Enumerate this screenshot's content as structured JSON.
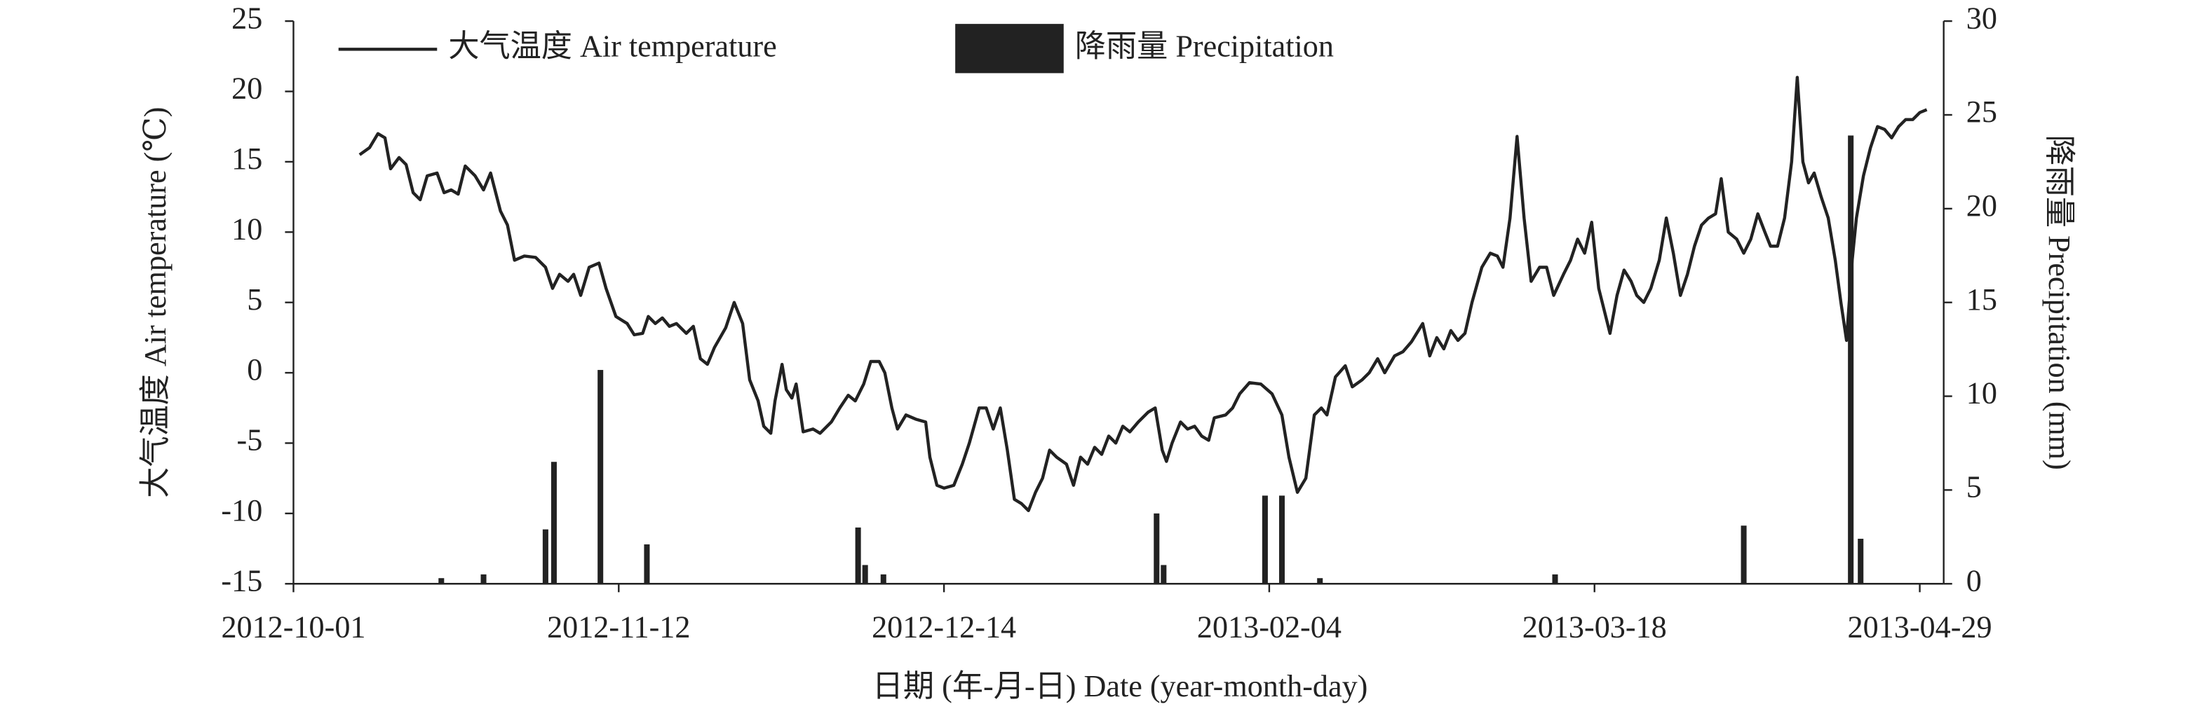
{
  "chart_data": {
    "type": "combo",
    "xlabel": "日期 (年-月-日) Date (year-month-day)",
    "ylabel": "大气温度 Air temperature (℃)",
    "y2label": "降雨量 Precipitation (mm)",
    "xlim": [
      0,
      1172
    ],
    "xticks": [
      {
        "value": 0,
        "label": "2012-10-01"
      },
      {
        "value": 231,
        "label": "2012-11-12"
      },
      {
        "value": 462,
        "label": "2012-12-14"
      },
      {
        "value": 693,
        "label": "2013-02-04"
      },
      {
        "value": 924,
        "label": "2013-03-18"
      },
      {
        "value": 1155,
        "label": "2013-04-29"
      }
    ],
    "ylim": [
      -15,
      25
    ],
    "yticks": [
      -15,
      -10,
      -5,
      0,
      5,
      10,
      15,
      20,
      25
    ],
    "y2lim": [
      0,
      30
    ],
    "y2ticks": [
      0,
      5,
      10,
      15,
      20,
      25,
      30
    ],
    "legend": "top",
    "series": [
      {
        "name": "大气温度 Air temperature",
        "type": "line",
        "color": "#222222",
        "x": [
          47,
          54,
          60,
          65,
          69,
          75,
          80,
          85,
          90,
          95,
          102,
          107,
          112,
          117,
          122,
          129,
          135,
          140,
          147,
          152,
          157,
          164,
          172,
          179,
          184,
          189,
          195,
          199,
          204,
          210,
          217,
          222,
          229,
          237,
          242,
          248,
          252,
          257,
          262,
          267,
          272,
          279,
          284,
          289,
          294,
          299,
          307,
          313,
          319,
          324,
          330,
          334,
          339,
          342,
          347,
          350,
          354,
          357,
          362,
          369,
          374,
          382,
          388,
          394,
          399,
          405,
          410,
          416,
          420,
          425,
          429,
          435,
          442,
          449,
          452,
          457,
          462,
          469,
          475,
          480,
          487,
          492,
          497,
          502,
          507,
          512,
          517,
          522,
          527,
          532,
          537,
          542,
          549,
          554,
          559,
          564,
          569,
          574,
          579,
          584,
          589,
          594,
          600,
          607,
          612,
          617,
          620,
          624,
          630,
          635,
          640,
          645,
          650,
          654,
          662,
          667,
          672,
          679,
          687,
          695,
          702,
          707,
          713,
          719,
          725,
          730,
          734,
          740,
          747,
          752,
          759,
          764,
          770,
          775,
          782,
          788,
          794,
          802,
          807,
          812,
          817,
          822,
          827,
          832,
          837,
          844,
          850,
          855,
          859,
          864,
          869,
          874,
          879,
          885,
          890,
          895,
          902,
          907,
          912,
          917,
          922,
          927,
          932,
          935,
          940,
          945,
          950,
          954,
          959,
          964,
          970,
          975,
          980,
          985,
          990,
          995,
          1000,
          1005,
          1010,
          1014,
          1019,
          1025,
          1030,
          1035,
          1040,
          1045,
          1049,
          1054,
          1059,
          1064,
          1068,
          1072,
          1076,
          1080,
          1085,
          1090,
          1095,
          1099,
          1103,
          1107,
          1110,
          1115,
          1120,
          1125,
          1130,
          1135,
          1140,
          1145,
          1150,
          1155,
          1160
        ],
        "values": [
          15.5,
          16,
          17,
          16.7,
          14.5,
          15.3,
          14.8,
          12.8,
          12.3,
          14,
          14.2,
          12.8,
          13,
          12.7,
          14.7,
          14,
          13,
          14.2,
          11.5,
          10.5,
          8,
          8.3,
          8.2,
          7.5,
          6,
          7,
          6.5,
          7,
          5.5,
          7.5,
          7.8,
          6,
          4,
          3.5,
          2.7,
          2.8,
          4,
          3.5,
          3.9,
          3.3,
          3.5,
          2.8,
          3.3,
          1,
          0.6,
          1.8,
          3.2,
          5,
          3.5,
          -0.5,
          -2,
          -3.8,
          -4.3,
          -2,
          0.6,
          -1.2,
          -1.8,
          -0.8,
          -4.2,
          -4,
          -4.3,
          -3.5,
          -2.5,
          -1.6,
          -2,
          -0.8,
          0.8,
          0.8,
          0,
          -2.5,
          -4,
          -3,
          -3.3,
          -3.5,
          -6,
          -8,
          -8.2,
          -8,
          -6.5,
          -5,
          -2.5,
          -2.5,
          -4,
          -2.5,
          -5.5,
          -9,
          -9.3,
          -9.8,
          -8.5,
          -7.5,
          -5.5,
          -6,
          -6.5,
          -8,
          -6,
          -6.5,
          -5.3,
          -5.8,
          -4.5,
          -5,
          -3.8,
          -4.2,
          -3.5,
          -2.8,
          -2.5,
          -5.5,
          -6.3,
          -5,
          -3.5,
          -4,
          -3.8,
          -4.5,
          -4.8,
          -3.2,
          -3,
          -2.5,
          -1.5,
          -0.7,
          -0.8,
          -1.5,
          -3,
          -6,
          -8.5,
          -7.5,
          -3,
          -2.5,
          -3,
          -0.3,
          0.5,
          -1,
          -0.5,
          0,
          1,
          0,
          1.2,
          1.5,
          2.2,
          3.5,
          1.2,
          2.5,
          1.7,
          3,
          2.3,
          2.8,
          5,
          7.5,
          8.5,
          8.3,
          7.5,
          11,
          16.8,
          11,
          6.5,
          7.5,
          7.5,
          5.5,
          7,
          8,
          9.5,
          8.5,
          10.7,
          6,
          4,
          2.8,
          5.5,
          7.3,
          6.5,
          5.5,
          5,
          6,
          8,
          11,
          8.5,
          5.5,
          7,
          9,
          10.5,
          11,
          11.3,
          13.8,
          10,
          9.5,
          8.5,
          9.5,
          11.3,
          10,
          9,
          9,
          11,
          15,
          21,
          15,
          13.5,
          14.2,
          12.5,
          11,
          8,
          5,
          2.3,
          8,
          11,
          14,
          16,
          17.5,
          17.3,
          16.7,
          17.5,
          18,
          18,
          18.5,
          18.7
        ]
      },
      {
        "name": "降雨量 Precipitation",
        "type": "bar",
        "axis": "y2",
        "color": "#222222",
        "x": [
          105,
          135,
          179,
          185,
          218,
          251,
          401,
          406,
          419,
          613,
          618,
          690,
          702,
          729,
          896,
          1030,
          1106,
          1113
        ],
        "values": [
          0.3,
          0.5,
          2.9,
          6.5,
          11.4,
          2.1,
          3.0,
          1.0,
          0.5,
          3.75,
          1.0,
          4.7,
          4.7,
          0.3,
          0.5,
          3.1,
          23.9,
          2.4
        ]
      }
    ]
  }
}
